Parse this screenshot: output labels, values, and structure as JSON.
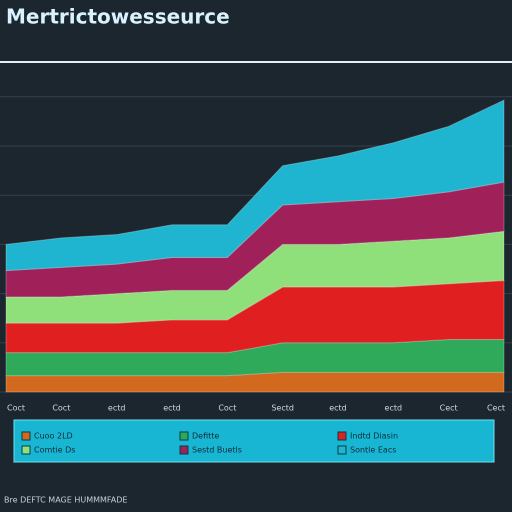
{
  "chart_data": {
    "type": "area",
    "title": "Mertrictowesseurce",
    "categories": [
      "Coct",
      "Coct",
      "ectd",
      "ectd",
      "Coct",
      "Sectd",
      "ectd",
      "ectd",
      "Cect",
      "Cect"
    ],
    "series": [
      {
        "name": "Cuoo 2LD",
        "color": "#d2691e",
        "values": [
          5,
          5,
          5,
          5,
          5,
          6,
          6,
          6,
          6,
          6
        ]
      },
      {
        "name": "Defitte",
        "color": "#2eaa5a",
        "values": [
          7,
          7,
          7,
          7,
          7,
          9,
          9,
          9,
          10,
          10
        ]
      },
      {
        "name": "Indtd Diasin",
        "color": "#e02020",
        "values": [
          9,
          9,
          9,
          10,
          10,
          17,
          17,
          17,
          17,
          18
        ]
      },
      {
        "name": "Comtie Ds",
        "color": "#8fe07a",
        "values": [
          8,
          8,
          9,
          9,
          9,
          13,
          13,
          14,
          14,
          15
        ]
      },
      {
        "name": "Sestd Buetls",
        "color": "#a0205a",
        "values": [
          8,
          9,
          9,
          10,
          10,
          12,
          13,
          13,
          14,
          15
        ]
      },
      {
        "name": "Sontle Eacs",
        "color": "#1fb5d0",
        "values": [
          8,
          9,
          9,
          10,
          10,
          12,
          14,
          17,
          20,
          25
        ]
      }
    ],
    "ylim": [
      0,
      100
    ],
    "yticks": [
      0,
      15,
      30,
      45,
      60,
      75,
      90
    ],
    "grid": true,
    "footer": "Bre DEFTC MAGE HUMMMFADE"
  }
}
